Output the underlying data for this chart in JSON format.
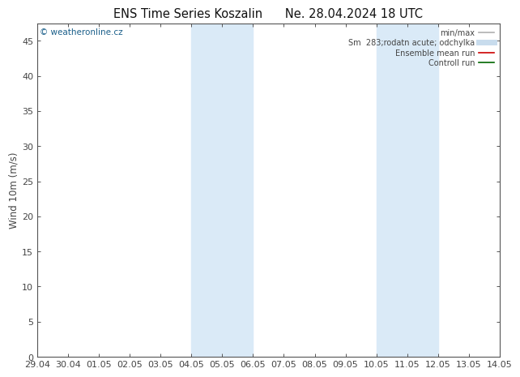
{
  "title_left": "ENS Time Series Koszalin",
  "title_right": "Ne. 28.04.2024 18 UTC",
  "ylabel": "Wind 10m (m/s)",
  "ylim": [
    0,
    47.5
  ],
  "yticks": [
    0,
    5,
    10,
    15,
    20,
    25,
    30,
    35,
    40,
    45
  ],
  "x_labels": [
    "29.04",
    "30.04",
    "01.05",
    "02.05",
    "03.05",
    "04.05",
    "05.05",
    "06.05",
    "07.05",
    "08.05",
    "09.05",
    "10.05",
    "11.05",
    "12.05",
    "13.05",
    "14.05"
  ],
  "x_values": [
    0,
    1,
    2,
    3,
    4,
    5,
    6,
    7,
    8,
    9,
    10,
    11,
    12,
    13,
    14,
    15
  ],
  "shaded_bands": [
    {
      "xmin": 5,
      "xmax": 7,
      "color": "#daeaf7"
    },
    {
      "xmin": 11,
      "xmax": 13,
      "color": "#daeaf7"
    }
  ],
  "watermark": "© weatheronline.cz",
  "watermark_color": "#1a5f8a",
  "background_color": "#ffffff",
  "legend_entries": [
    {
      "label": "min/max",
      "color": "#b0b0b0",
      "lw": 1.2,
      "type": "line"
    },
    {
      "label": "Sm  283;rodatn acute; odchylka",
      "color": "#c8dced",
      "lw": 5,
      "type": "line"
    },
    {
      "label": "Ensemble mean run",
      "color": "#cc0000",
      "lw": 1.2,
      "type": "line"
    },
    {
      "label": "Controll run",
      "color": "#006600",
      "lw": 1.2,
      "type": "line"
    }
  ],
  "border_color": "#555555",
  "tick_color": "#444444",
  "font_size": 8.5,
  "title_font_size": 10.5
}
